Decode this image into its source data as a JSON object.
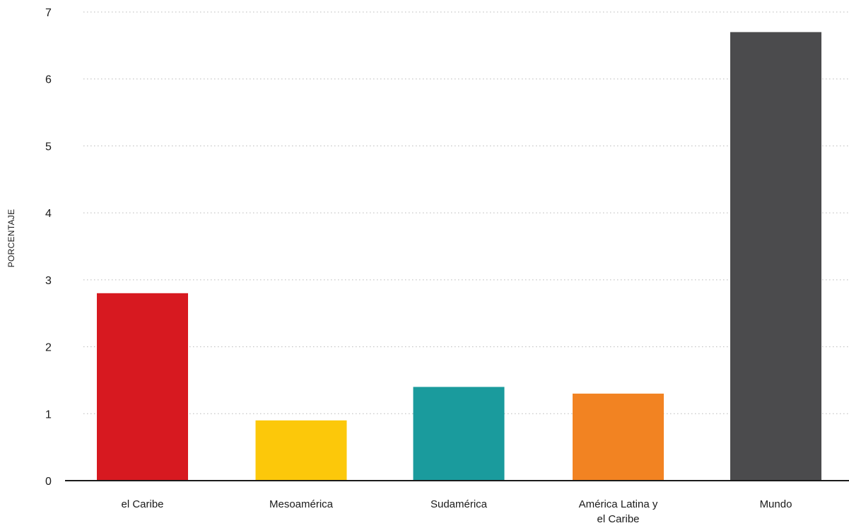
{
  "chart_data": {
    "type": "bar",
    "categories": [
      [
        "el Caribe"
      ],
      [
        "Mesoamérica"
      ],
      [
        "Sudamérica"
      ],
      [
        "América Latina  y",
        "el Caribe"
      ],
      [
        "Mundo"
      ]
    ],
    "values": [
      2.8,
      0.9,
      1.4,
      1.3,
      6.7
    ],
    "colors": [
      "#d71920",
      "#fcc80a",
      "#1a9b9d",
      "#f28322",
      "#4b4b4d"
    ],
    "title": "",
    "xlabel": "",
    "ylabel": "PORCENTAJE",
    "ylim": [
      0,
      7
    ],
    "yticks": [
      "0",
      "1",
      "2",
      "3",
      "4",
      "5",
      "6",
      "7"
    ],
    "grid": true
  }
}
